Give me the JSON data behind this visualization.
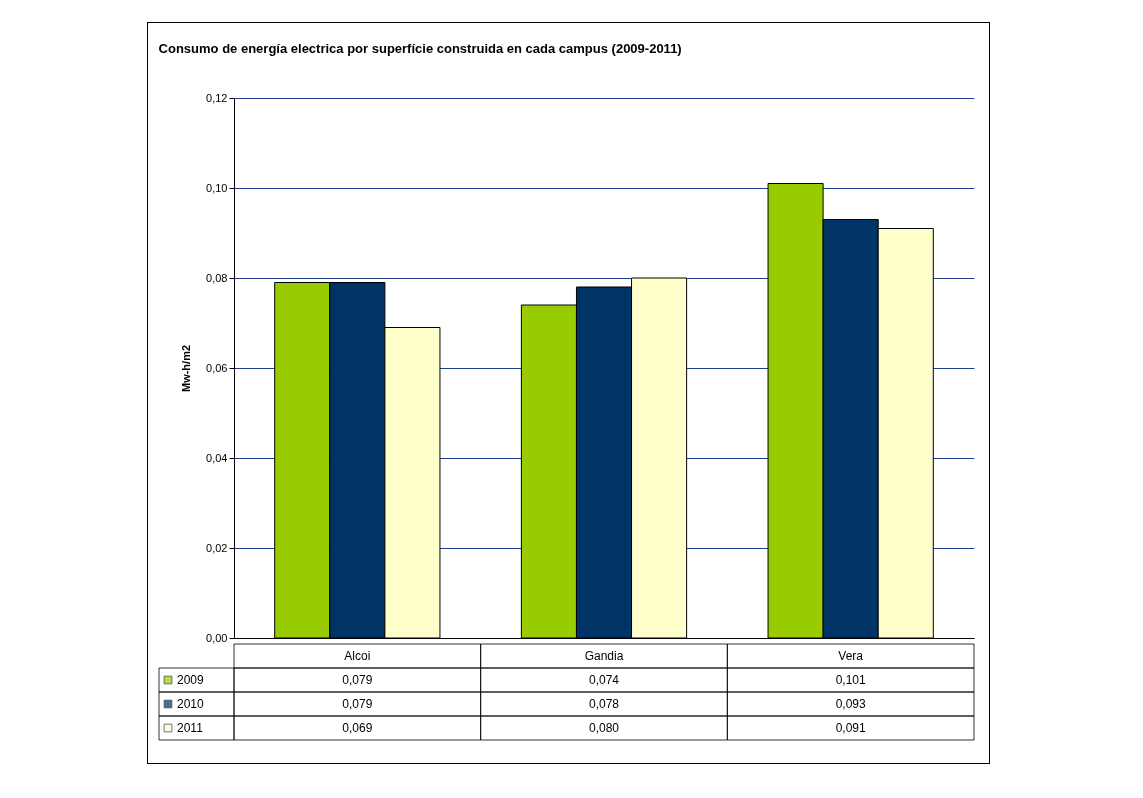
{
  "chart_data": {
    "type": "bar",
    "title": "Consumo de energía electrica por superfície construida en cada campus (2009-2011)",
    "ylabel": "Mw-h/m2",
    "categories": [
      "Alcoi",
      "Gandia",
      "Vera"
    ],
    "series": [
      {
        "name": "2009",
        "color": "#99cc00",
        "values": [
          0.079,
          0.074,
          0.101
        ],
        "value_labels": [
          "0,079",
          "0,074",
          "0,101"
        ]
      },
      {
        "name": "2010",
        "color": "#003366",
        "values": [
          0.079,
          0.078,
          0.093
        ],
        "value_labels": [
          "0,079",
          "0,078",
          "0,093"
        ]
      },
      {
        "name": "2011",
        "color": "#ffffcc",
        "values": [
          0.069,
          0.08,
          0.091
        ],
        "value_labels": [
          "0,069",
          "0,080",
          "0,091"
        ]
      }
    ],
    "ylim": [
      0,
      0.12
    ],
    "yticks": [
      {
        "value": 0,
        "label": "0,00"
      },
      {
        "value": 0.02,
        "label": "0,02"
      },
      {
        "value": 0.04,
        "label": "0,04"
      },
      {
        "value": 0.06,
        "label": "0,06"
      },
      {
        "value": 0.08,
        "label": "0,08"
      },
      {
        "value": 0.1,
        "label": "0,10"
      },
      {
        "value": 0.12,
        "label": "0,12"
      }
    ],
    "grid": "y",
    "legend": "bottom left"
  }
}
